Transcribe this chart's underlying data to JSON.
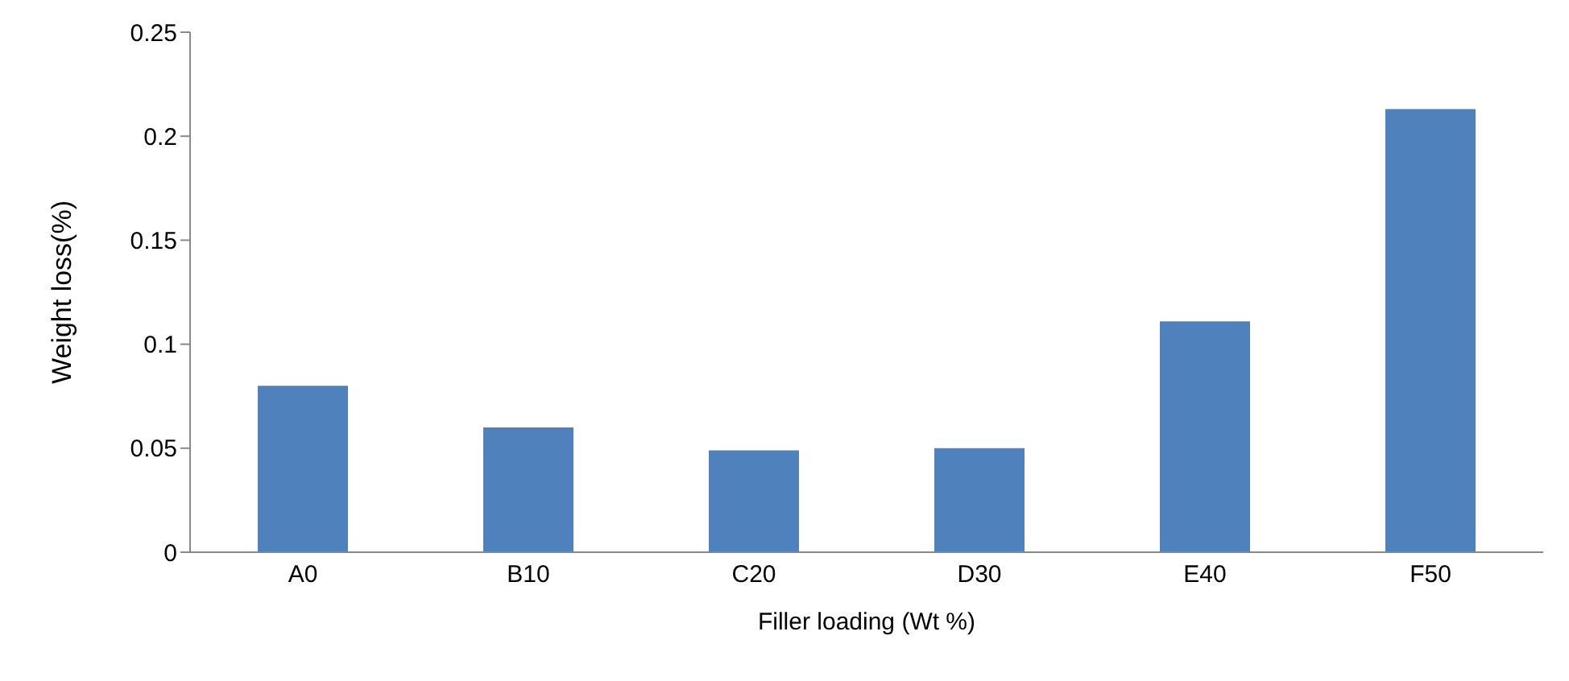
{
  "chart_data": {
    "type": "bar",
    "xlabel": "Filler loading (Wt %)",
    "ylabel": "Weight loss(%)",
    "categories": [
      "A0",
      "B10",
      "C20",
      "D30",
      "E40",
      "F50"
    ],
    "values": [
      0.08,
      0.06,
      0.049,
      0.05,
      0.111,
      0.213
    ],
    "color": "#4f81bd",
    "ylim": [
      0,
      0.25
    ],
    "yticks": [
      0,
      0.05,
      0.1,
      0.15,
      0.2,
      0.25
    ],
    "grid": false,
    "legend": false
  }
}
